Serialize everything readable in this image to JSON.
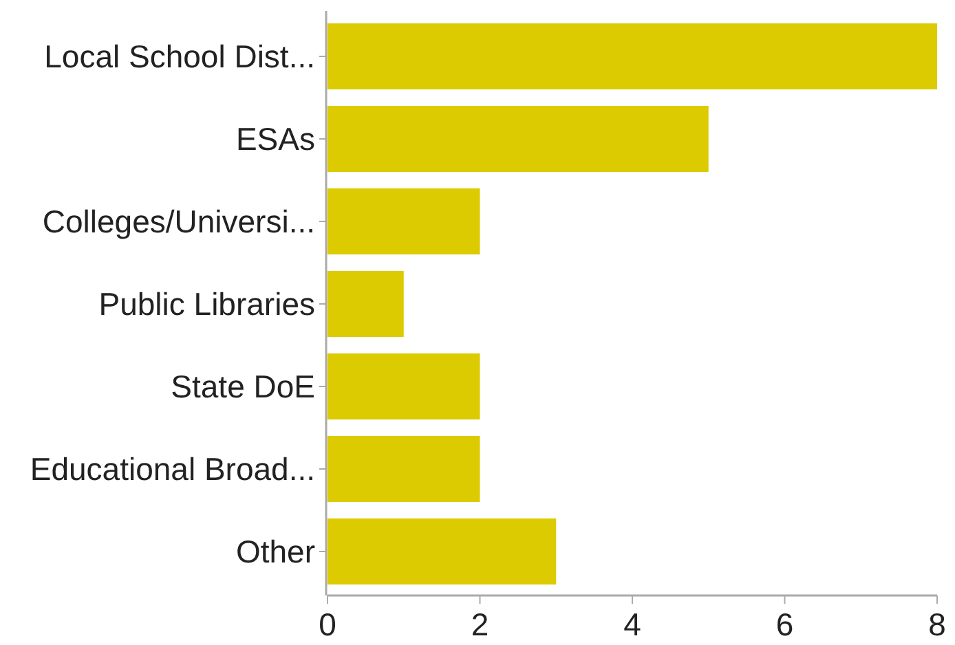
{
  "chart_data": {
    "type": "bar",
    "orientation": "horizontal",
    "categories": [
      "Local School Dist...",
      "ESAs",
      "Colleges/Universi...",
      "Public Libraries",
      "State DoE",
      "Educational Broad...",
      "Other"
    ],
    "values": [
      8,
      5,
      2,
      1,
      2,
      2,
      3
    ],
    "color": "#dccb00",
    "xlim": [
      0,
      8
    ],
    "xticks": [
      0,
      2,
      4,
      6,
      8
    ],
    "grid": false
  }
}
